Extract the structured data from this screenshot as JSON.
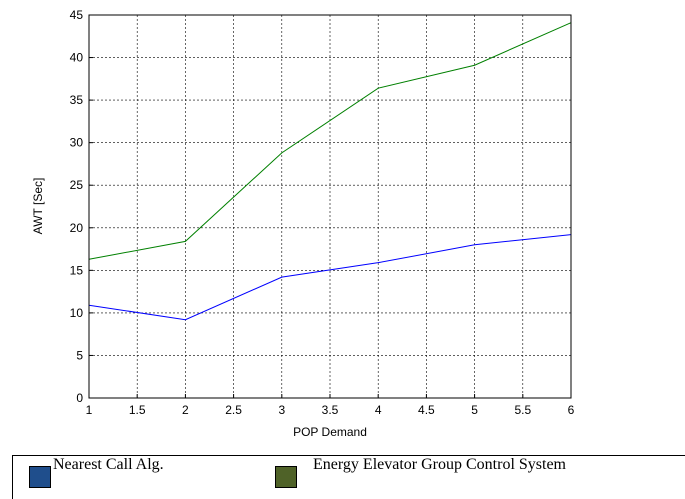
{
  "chart_data": {
    "type": "line",
    "title": "",
    "xlabel": "POP Demand",
    "ylabel": "AWT [Sec]",
    "xlim": [
      1,
      6
    ],
    "ylim": [
      0,
      45
    ],
    "x_ticks": [
      "1",
      "1.5",
      "2",
      "2.5",
      "3",
      "3.5",
      "4",
      "4.5",
      "5",
      "5.5",
      "6"
    ],
    "y_ticks": [
      "0",
      "5",
      "10",
      "15",
      "20",
      "25",
      "30",
      "35",
      "40",
      "45"
    ],
    "grid": true,
    "legend_position": "bottom",
    "x": [
      1,
      2,
      3,
      4,
      5,
      6
    ],
    "series": [
      {
        "name": "Nearest Call Alg.",
        "values": [
          10.9,
          9.2,
          14.2,
          15.9,
          18.0,
          19.2
        ],
        "color": "#0000ff",
        "legend_color": "#1f4e8c"
      },
      {
        "name": "Energy Elevator Group Control System",
        "values": [
          16.3,
          18.4,
          28.8,
          36.4,
          39.1,
          44.1
        ],
        "color": "#008000",
        "legend_color": "#4f6228"
      }
    ]
  }
}
